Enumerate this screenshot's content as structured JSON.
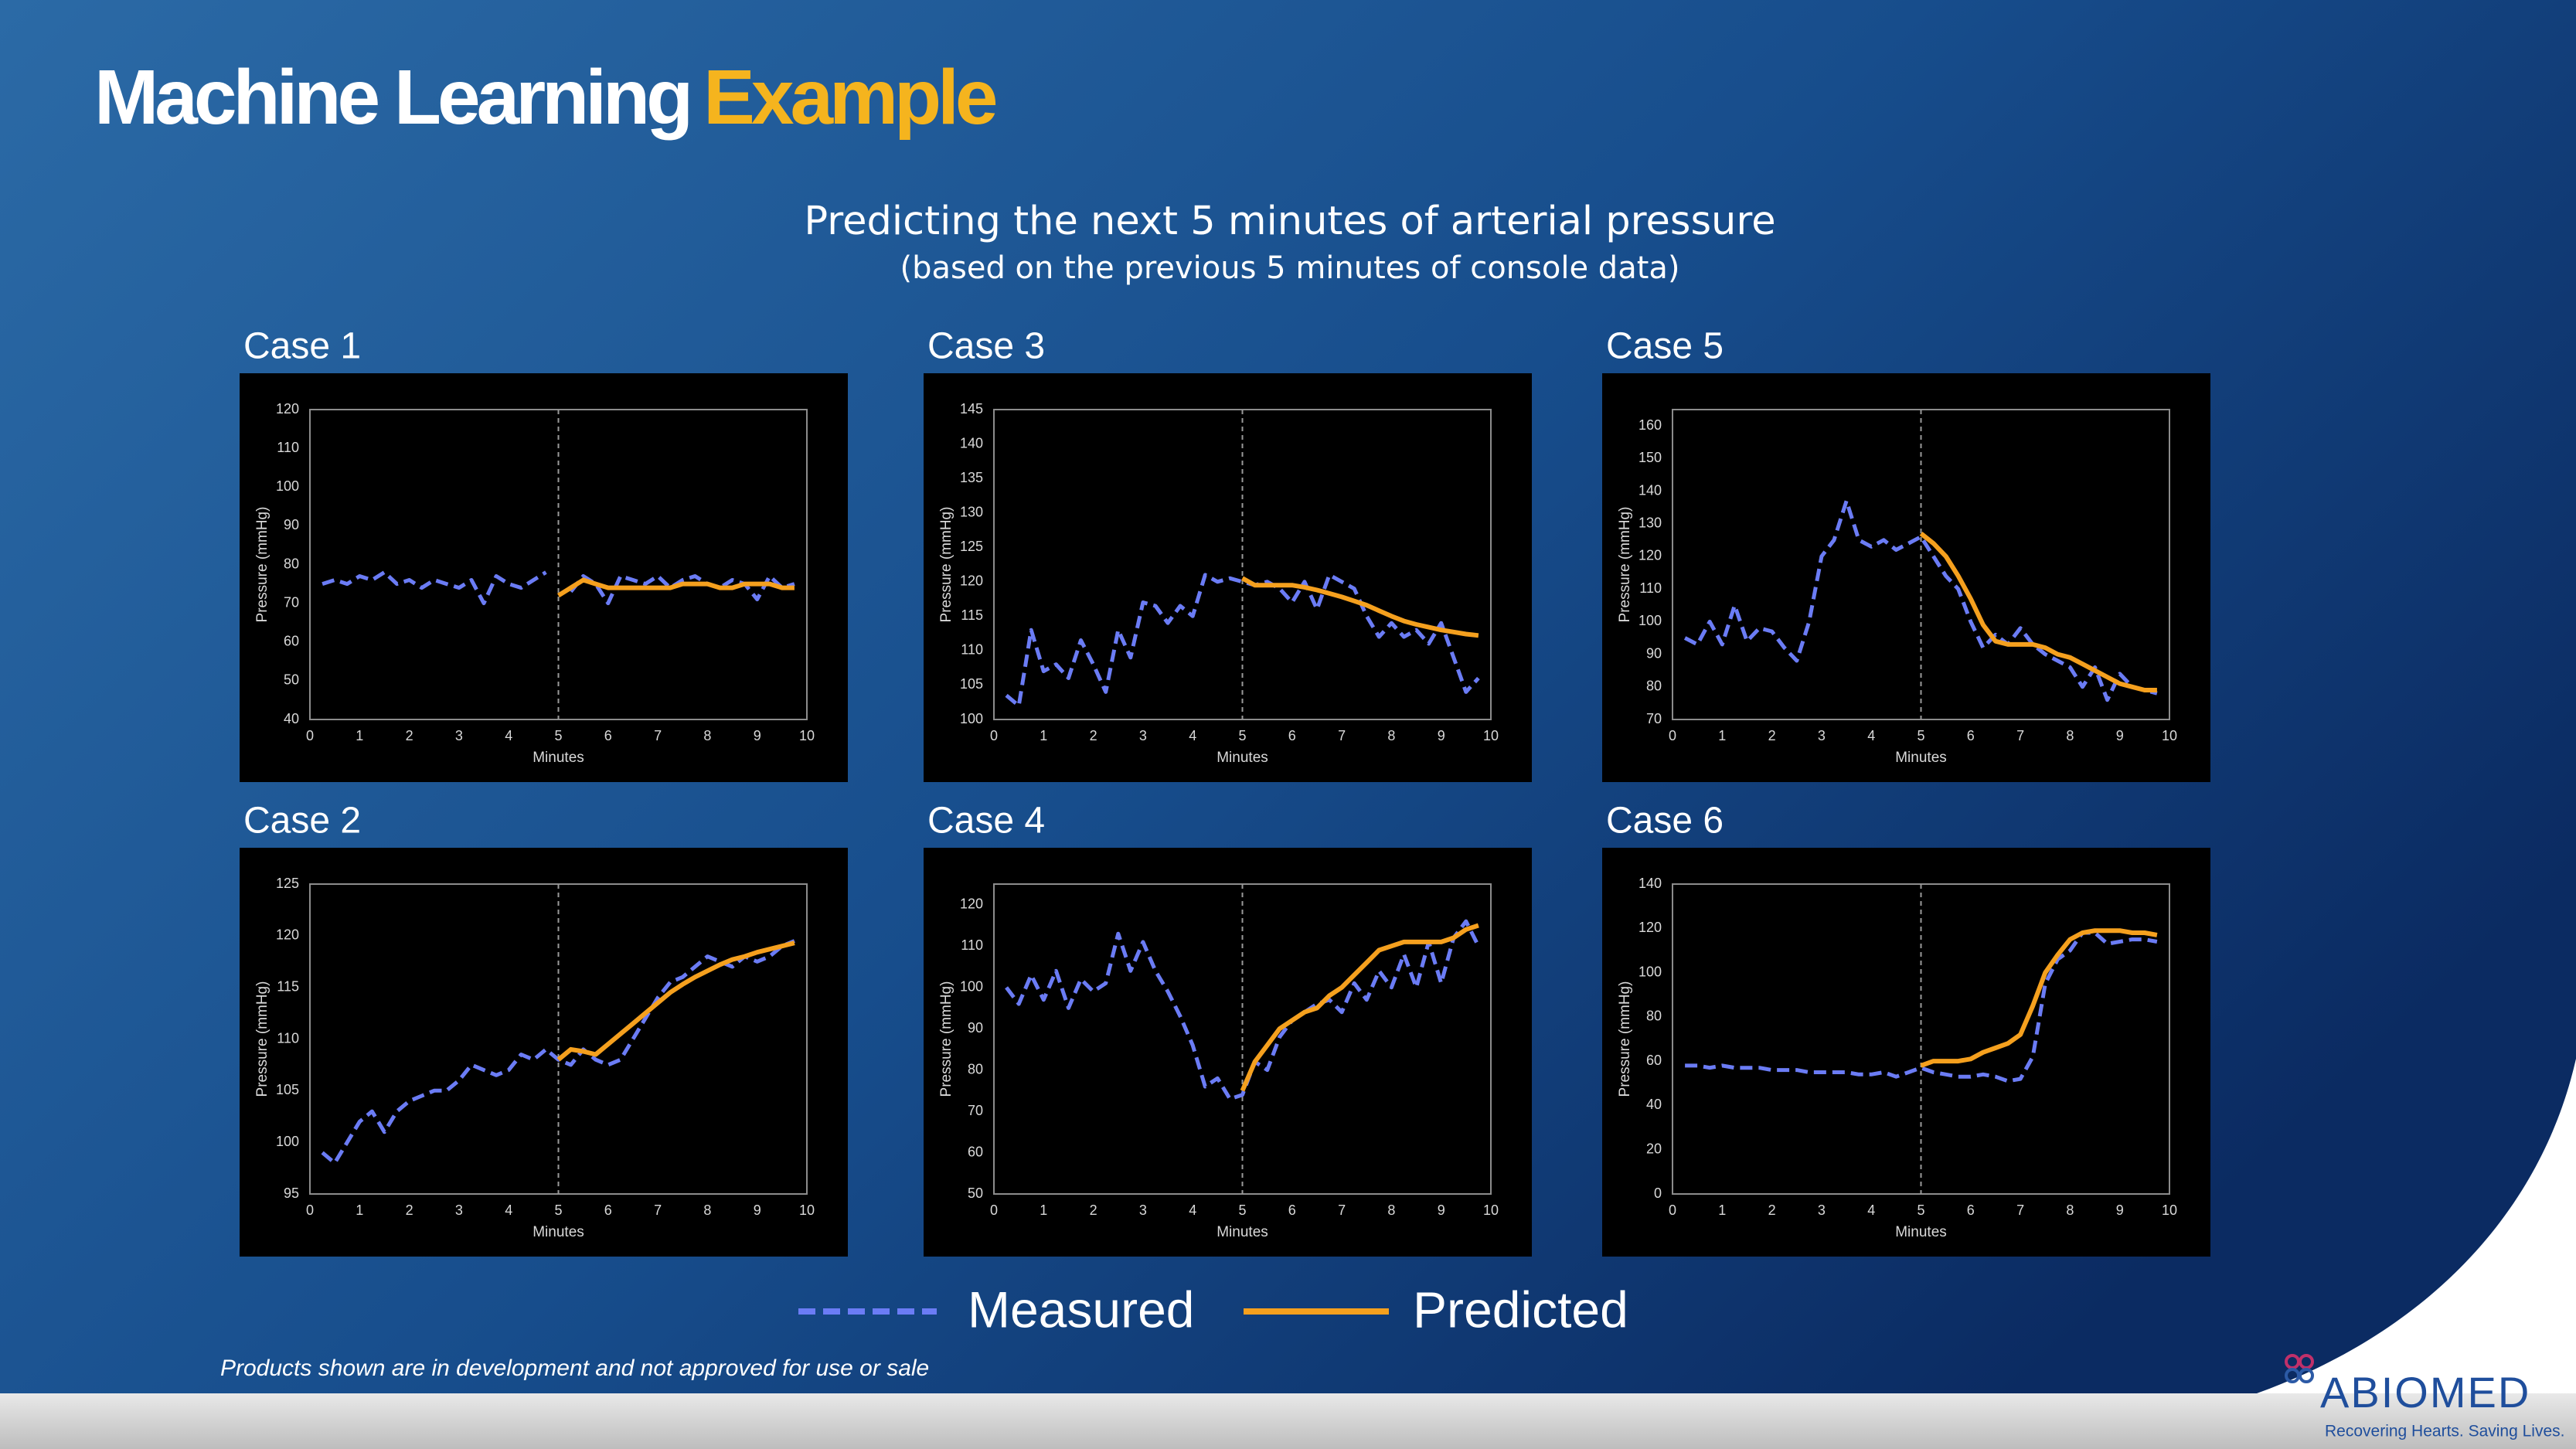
{
  "header": {
    "title": "Machine Learning",
    "title_highlight": "Example",
    "subtitle": "Predicting the next 5 minutes of arterial pressure",
    "subtitle_note": "(based on the previous 5 minutes of console data)"
  },
  "chart_data": [
    {
      "type": "line",
      "title": "Case 1",
      "xlabel": "Minutes",
      "ylabel": "Pressure (mmHg)",
      "xlim": [
        0,
        10
      ],
      "xticks": [
        0,
        1,
        2,
        3,
        4,
        5,
        6,
        7,
        8,
        9,
        10
      ],
      "ylim": [
        40,
        120
      ],
      "yticks": [
        40,
        50,
        60,
        70,
        80,
        90,
        100,
        110,
        120
      ],
      "series": [
        {
          "name": "Measured",
          "color": "#6b7cf5",
          "dash": true,
          "x": [
            0.25,
            0.5,
            0.75,
            1,
            1.25,
            1.5,
            1.75,
            2,
            2.25,
            2.5,
            2.75,
            3,
            3.25,
            3.5,
            3.75,
            4,
            4.25,
            4.5,
            4.75,
            5,
            5.25,
            5.5,
            5.75,
            6,
            6.25,
            6.5,
            6.75,
            7,
            7.25,
            7.5,
            7.75,
            8,
            8.25,
            8.5,
            8.75,
            9,
            9.25,
            9.5,
            9.75
          ],
          "values": [
            75,
            76,
            75,
            77,
            76,
            78,
            75,
            76,
            74,
            76,
            75,
            74,
            76,
            70,
            77,
            75,
            74,
            76,
            78,
            null,
            73,
            77,
            75,
            70,
            77,
            76,
            75,
            77,
            74,
            76,
            77,
            75,
            74,
            76,
            75,
            71,
            77,
            74,
            75
          ]
        },
        {
          "name": "Predicted",
          "color": "#f5a01e",
          "dash": false,
          "x": [
            5,
            5.25,
            5.5,
            5.75,
            6,
            6.25,
            6.5,
            6.75,
            7,
            7.25,
            7.5,
            7.75,
            8,
            8.25,
            8.5,
            8.75,
            9,
            9.25,
            9.5,
            9.75
          ],
          "values": [
            72,
            74,
            76,
            75,
            74,
            74,
            74,
            74,
            74,
            74,
            75,
            75,
            75,
            74,
            74,
            75,
            75,
            75,
            74,
            74
          ]
        }
      ]
    },
    {
      "type": "line",
      "title": "Case 2",
      "xlabel": "Minutes",
      "ylabel": "Pressure (mmHg)",
      "xlim": [
        0,
        10
      ],
      "xticks": [
        0,
        1,
        2,
        3,
        4,
        5,
        6,
        7,
        8,
        9,
        10
      ],
      "ylim": [
        95,
        125
      ],
      "yticks": [
        95,
        100,
        105,
        110,
        115,
        120,
        125
      ],
      "series": [
        {
          "name": "Measured",
          "color": "#6b7cf5",
          "dash": true,
          "x": [
            0.25,
            0.5,
            0.75,
            1,
            1.25,
            1.5,
            1.75,
            2,
            2.25,
            2.5,
            2.75,
            3,
            3.25,
            3.5,
            3.75,
            4,
            4.25,
            4.5,
            4.75,
            5,
            5.25,
            5.5,
            5.75,
            6,
            6.25,
            6.5,
            6.75,
            7,
            7.25,
            7.5,
            7.75,
            8,
            8.25,
            8.5,
            8.75,
            9,
            9.25,
            9.5,
            9.75
          ],
          "values": [
            99,
            98,
            100,
            102,
            103,
            101,
            103,
            104,
            104.5,
            105,
            105,
            106,
            107.5,
            107,
            106.5,
            107,
            108.5,
            108,
            109,
            108,
            107.5,
            109,
            108,
            107.5,
            108,
            110,
            112,
            114,
            115.5,
            116,
            117,
            118,
            117.5,
            117,
            118,
            117.5,
            118,
            119,
            119.5
          ]
        },
        {
          "name": "Predicted",
          "color": "#f5a01e",
          "dash": false,
          "x": [
            5,
            5.25,
            5.5,
            5.75,
            6,
            6.25,
            6.5,
            6.75,
            7,
            7.25,
            7.5,
            7.75,
            8,
            8.25,
            8.5,
            8.75,
            9,
            9.25,
            9.5,
            9.75
          ],
          "values": [
            108,
            109,
            108.8,
            108.5,
            109.5,
            110.5,
            111.5,
            112.5,
            113.5,
            114.5,
            115.3,
            116,
            116.6,
            117.2,
            117.7,
            118,
            118.4,
            118.7,
            119,
            119.3
          ]
        }
      ]
    },
    {
      "type": "line",
      "title": "Case 3",
      "xlabel": "Minutes",
      "ylabel": "Pressure (mmHg)",
      "xlim": [
        0,
        10
      ],
      "xticks": [
        0,
        1,
        2,
        3,
        4,
        5,
        6,
        7,
        8,
        9,
        10
      ],
      "ylim": [
        100,
        145
      ],
      "yticks": [
        100,
        105,
        110,
        115,
        120,
        125,
        130,
        135,
        140,
        145
      ],
      "series": [
        {
          "name": "Measured",
          "color": "#6b7cf5",
          "dash": true,
          "x": [
            0.25,
            0.5,
            0.75,
            1,
            1.25,
            1.5,
            1.75,
            2,
            2.25,
            2.5,
            2.75,
            3,
            3.25,
            3.5,
            3.75,
            4,
            4.25,
            4.5,
            4.75,
            5,
            5.25,
            5.5,
            5.75,
            6,
            6.25,
            6.5,
            6.75,
            7,
            7.25,
            7.5,
            7.75,
            8,
            8.25,
            8.5,
            8.75,
            9,
            9.25,
            9.5,
            9.75
          ],
          "values": [
            103.5,
            102,
            113,
            107,
            108,
            106,
            111.5,
            108,
            104,
            113,
            109,
            117,
            116.5,
            114,
            116.5,
            115,
            121,
            120,
            120.5,
            120,
            119.5,
            120,
            119,
            117,
            120,
            116,
            121,
            120,
            119,
            115,
            112,
            114,
            112,
            113,
            111,
            114,
            109,
            104,
            106
          ]
        },
        {
          "name": "Predicted",
          "color": "#f5a01e",
          "dash": false,
          "x": [
            5,
            5.25,
            5.5,
            5.75,
            6,
            6.25,
            6.5,
            6.75,
            7,
            7.25,
            7.5,
            7.75,
            8,
            8.25,
            8.5,
            8.75,
            9,
            9.25,
            9.5,
            9.75
          ],
          "values": [
            120.5,
            119.5,
            119.5,
            119.5,
            119.5,
            119.2,
            118.8,
            118.3,
            117.8,
            117.2,
            116.6,
            115.8,
            115,
            114.3,
            113.8,
            113.4,
            113,
            112.7,
            112.4,
            112.2
          ]
        }
      ]
    },
    {
      "type": "line",
      "title": "Case 4",
      "xlabel": "Minutes",
      "ylabel": "Pressure (mmHg)",
      "xlim": [
        0,
        10
      ],
      "xticks": [
        0,
        1,
        2,
        3,
        4,
        5,
        6,
        7,
        8,
        9,
        10
      ],
      "ylim": [
        50,
        125
      ],
      "yticks": [
        50,
        60,
        70,
        80,
        90,
        100,
        110,
        120
      ],
      "series": [
        {
          "name": "Measured",
          "color": "#6b7cf5",
          "dash": true,
          "x": [
            0.25,
            0.5,
            0.75,
            1,
            1.25,
            1.5,
            1.75,
            2,
            2.25,
            2.5,
            2.75,
            3,
            3.25,
            3.5,
            3.75,
            4,
            4.25,
            4.5,
            4.75,
            5,
            5.25,
            5.5,
            5.75,
            6,
            6.25,
            6.5,
            6.75,
            7,
            7.25,
            7.5,
            7.75,
            8,
            8.25,
            8.5,
            8.75,
            9,
            9.25,
            9.5,
            9.75
          ],
          "values": [
            100,
            96,
            103,
            97,
            104,
            95,
            102,
            99,
            101,
            113,
            104,
            111,
            104,
            99,
            93,
            86,
            76,
            78,
            73,
            74,
            82,
            80,
            88,
            92,
            94,
            96,
            97,
            94,
            101,
            97,
            104,
            100,
            108,
            100,
            111,
            101,
            112,
            116,
            110
          ]
        },
        {
          "name": "Predicted",
          "color": "#f5a01e",
          "dash": false,
          "x": [
            5,
            5.25,
            5.5,
            5.75,
            6,
            6.25,
            6.5,
            6.75,
            7,
            7.25,
            7.5,
            7.75,
            8,
            8.25,
            8.5,
            8.75,
            9,
            9.25,
            9.5,
            9.75
          ],
          "values": [
            75,
            82,
            86,
            90,
            92,
            94,
            95,
            98,
            100,
            103,
            106,
            109,
            110,
            111,
            111,
            111,
            111,
            112,
            114,
            115
          ]
        }
      ]
    },
    {
      "type": "line",
      "title": "Case 5",
      "xlabel": "Minutes",
      "ylabel": "Pressure (mmHg)",
      "xlim": [
        0,
        10
      ],
      "xticks": [
        0,
        1,
        2,
        3,
        4,
        5,
        6,
        7,
        8,
        9,
        10
      ],
      "ylim": [
        70,
        165
      ],
      "yticks": [
        70,
        80,
        90,
        100,
        110,
        120,
        130,
        140,
        150,
        160
      ],
      "series": [
        {
          "name": "Measured",
          "color": "#6b7cf5",
          "dash": true,
          "x": [
            0.25,
            0.5,
            0.75,
            1,
            1.25,
            1.5,
            1.75,
            2,
            2.25,
            2.5,
            2.75,
            3,
            3.25,
            3.5,
            3.75,
            4,
            4.25,
            4.5,
            4.75,
            5,
            5.25,
            5.5,
            5.75,
            6,
            6.25,
            6.5,
            6.75,
            7,
            7.25,
            7.5,
            7.75,
            8,
            8.25,
            8.5,
            8.75,
            9,
            9.25,
            9.5,
            9.75
          ],
          "values": [
            95,
            93,
            100,
            93,
            105,
            94,
            98,
            97,
            92,
            88,
            100,
            120,
            125,
            137,
            125,
            123,
            125,
            122,
            124,
            126,
            120,
            114,
            110,
            100,
            92,
            96,
            93,
            98,
            93,
            90,
            88,
            86,
            80,
            86,
            76,
            84,
            80,
            79,
            78
          ]
        },
        {
          "name": "Predicted",
          "color": "#f5a01e",
          "dash": false,
          "x": [
            5,
            5.25,
            5.5,
            5.75,
            6,
            6.25,
            6.5,
            6.75,
            7,
            7.25,
            7.5,
            7.75,
            8,
            8.25,
            8.5,
            8.75,
            9,
            9.25,
            9.5,
            9.75
          ],
          "values": [
            127,
            124,
            120,
            114,
            107,
            99,
            94,
            93,
            93,
            93,
            92,
            90,
            89,
            87,
            85,
            83,
            81,
            80,
            79,
            79
          ]
        }
      ]
    },
    {
      "type": "line",
      "title": "Case 6",
      "xlabel": "Minutes",
      "ylabel": "Pressure (mmHg)",
      "xlim": [
        0,
        10
      ],
      "xticks": [
        0,
        1,
        2,
        3,
        4,
        5,
        6,
        7,
        8,
        9,
        10
      ],
      "ylim": [
        0,
        140
      ],
      "yticks": [
        0,
        20,
        40,
        60,
        80,
        100,
        120,
        140
      ],
      "series": [
        {
          "name": "Measured",
          "color": "#6b7cf5",
          "dash": true,
          "x": [
            0.25,
            0.5,
            0.75,
            1,
            1.25,
            1.5,
            1.75,
            2,
            2.25,
            2.5,
            2.75,
            3,
            3.25,
            3.5,
            3.75,
            4,
            4.25,
            4.5,
            4.75,
            5,
            5.25,
            5.5,
            5.75,
            6,
            6.25,
            6.5,
            6.75,
            7,
            7.25,
            7.5,
            7.75,
            8,
            8.25,
            8.5,
            8.75,
            9,
            9.25,
            9.5,
            9.75
          ],
          "values": [
            58,
            58,
            57,
            58,
            57,
            57,
            57,
            56,
            56,
            56,
            55,
            55,
            55,
            55,
            54,
            54,
            55,
            53,
            55,
            57,
            55,
            54,
            53,
            53,
            54,
            53,
            51,
            52,
            62,
            95,
            106,
            110,
            118,
            118,
            113,
            114,
            115,
            115,
            114
          ]
        },
        {
          "name": "Predicted",
          "color": "#f5a01e",
          "dash": false,
          "x": [
            5,
            5.25,
            5.5,
            5.75,
            6,
            6.25,
            6.5,
            6.75,
            7,
            7.25,
            7.5,
            7.75,
            8,
            8.25,
            8.5,
            8.75,
            9,
            9.25,
            9.5,
            9.75
          ],
          "values": [
            58,
            60,
            60,
            60,
            61,
            64,
            66,
            68,
            72,
            85,
            100,
            108,
            115,
            118,
            119,
            119,
            119,
            118,
            118,
            117
          ]
        }
      ]
    }
  ],
  "footer": {
    "disclaimer": "Products shown are in development and not approved for use or sale",
    "brand": "ABIOMED",
    "tagline": "Recovering Hearts. Saving Lives."
  }
}
